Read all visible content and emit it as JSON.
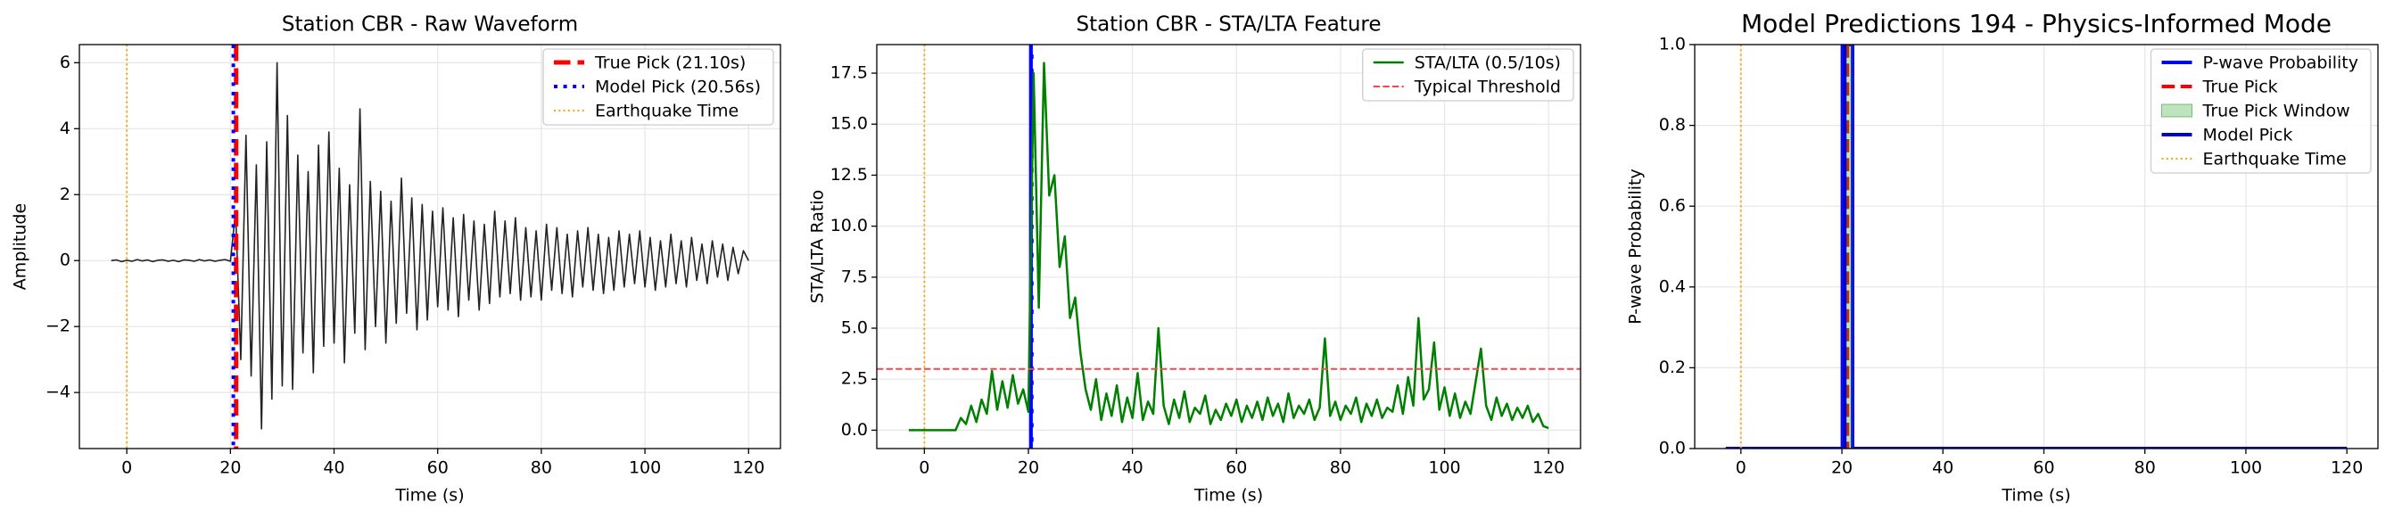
{
  "chart_data": [
    {
      "type": "line",
      "title": "Station CBR - Raw Waveform",
      "xlabel": "Time (s)",
      "ylabel": "Amplitude",
      "xlim": [
        -9.15,
        126.15
      ],
      "ylim": [
        -5.7,
        6.55
      ],
      "xticks": [
        0,
        20,
        40,
        60,
        80,
        100,
        120
      ],
      "yticks": [
        {
          "value": -4,
          "label": "−4"
        },
        {
          "value": -2,
          "label": "−2"
        },
        0,
        2,
        4,
        6
      ],
      "grid": true,
      "legend": "upper right",
      "marks": [
        {
          "kind": "line",
          "color": "#222222",
          "linestyle": "solid",
          "linewidth": 1.6,
          "x": [
            -3,
            -2,
            -1,
            0,
            1,
            2,
            3,
            4,
            5,
            6,
            7,
            8,
            9,
            10,
            11,
            12,
            13,
            14,
            15,
            16,
            17,
            18,
            19,
            20,
            21,
            22,
            23,
            24,
            25,
            26,
            27,
            28,
            29,
            30,
            31,
            32,
            33,
            34,
            35,
            36,
            37,
            38,
            39,
            40,
            41,
            42,
            43,
            44,
            45,
            46,
            47,
            48,
            49,
            50,
            51,
            52,
            53,
            54,
            55,
            56,
            57,
            58,
            59,
            60,
            61,
            62,
            63,
            64,
            65,
            66,
            67,
            68,
            69,
            70,
            71,
            72,
            73,
            74,
            75,
            76,
            77,
            78,
            79,
            80,
            81,
            82,
            83,
            84,
            85,
            86,
            87,
            88,
            89,
            90,
            91,
            92,
            93,
            94,
            95,
            96,
            97,
            98,
            99,
            100,
            101,
            102,
            103,
            104,
            105,
            106,
            107,
            108,
            109,
            110,
            111,
            112,
            113,
            114,
            115,
            116,
            117,
            118,
            119,
            120
          ],
          "values": [
            0,
            0.02,
            -0.03,
            0.01,
            -0.02,
            0.03,
            -0.01,
            0.02,
            -0.03,
            0.01,
            0.02,
            -0.02,
            0.01,
            -0.03,
            0.02,
            0.01,
            -0.02,
            0.03,
            -0.01,
            0.02,
            -0.02,
            0.01,
            0.03,
            -0.02,
            1.5,
            -3.0,
            3.8,
            -3.5,
            2.9,
            -5.1,
            3.6,
            -4.2,
            6.0,
            -3.8,
            4.4,
            -3.9,
            3.2,
            -2.8,
            2.7,
            -3.4,
            3.5,
            -2.6,
            3.9,
            -2.5,
            2.8,
            -3.1,
            2.3,
            -2.2,
            4.6,
            -2.7,
            2.4,
            -2.0,
            2.1,
            -2.5,
            1.8,
            -1.9,
            2.5,
            -1.6,
            1.9,
            -2.1,
            1.7,
            -1.8,
            1.5,
            -1.4,
            1.6,
            -1.5,
            1.3,
            -1.7,
            1.4,
            -1.2,
            1.2,
            -1.5,
            1.1,
            -1.3,
            1.5,
            -1.1,
            1.2,
            -1.0,
            1.3,
            -1.2,
            1.0,
            -1.1,
            0.9,
            -1.2,
            1.1,
            -0.9,
            1.0,
            -1.0,
            0.8,
            -1.1,
            0.9,
            -0.8,
            1.0,
            -0.9,
            0.8,
            -1.0,
            0.7,
            -0.9,
            0.9,
            -0.8,
            0.8,
            -0.7,
            0.9,
            -0.8,
            0.7,
            -0.9,
            0.6,
            -0.8,
            0.8,
            -0.7,
            0.6,
            -0.8,
            0.7,
            -0.6,
            0.5,
            -0.7,
            0.6,
            -0.5,
            0.5,
            -0.6,
            0.4,
            -0.4,
            0.3,
            0
          ]
        },
        {
          "kind": "vline",
          "name": "True Pick (21.10s)",
          "x": 21.1,
          "color": "#ff0000",
          "linestyle": "dashed",
          "linewidth": 5
        },
        {
          "kind": "vline",
          "name": "Model Pick (20.56s)",
          "x": 20.56,
          "color": "#0000ff",
          "linestyle": "dotted",
          "linewidth": 4
        },
        {
          "kind": "vline",
          "name": "Earthquake Time",
          "x": 0,
          "color": "#ffa500",
          "linestyle": "dotted",
          "linewidth": 2
        }
      ]
    },
    {
      "type": "line",
      "title": "Station CBR - STA/LTA Feature",
      "xlabel": "Time (s)",
      "ylabel": "STA/LTA Ratio",
      "xlim": [
        -9.15,
        126.15
      ],
      "ylim": [
        -0.9,
        18.9
      ],
      "xticks": [
        0,
        20,
        40,
        60,
        80,
        100,
        120
      ],
      "yticks": [
        {
          "value": 0,
          "label": "0.0"
        },
        2.5,
        {
          "value": 5,
          "label": "5.0"
        },
        7.5,
        {
          "value": 10,
          "label": "10.0"
        },
        12.5,
        {
          "value": 15,
          "label": "15.0"
        },
        17.5
      ],
      "grid": true,
      "legend": "upper right",
      "marks": [
        {
          "kind": "vline",
          "x": 0,
          "color": "#ffa500",
          "linestyle": "dotted",
          "linewidth": 2
        },
        {
          "kind": "vline",
          "x": 20.56,
          "color": "#0000ff",
          "linestyle": "solid",
          "linewidth": 5
        },
        {
          "kind": "vline",
          "x": 21.1,
          "color": "#ffffff",
          "linestyle": "dashed",
          "linewidth": 3
        },
        {
          "kind": "line",
          "name": "STA/LTA (0.5/10s)",
          "color": "#008000",
          "linestyle": "solid",
          "linewidth": 2.5,
          "x": [
            -3,
            -2,
            -1,
            0,
            1,
            2,
            3,
            4,
            5,
            6,
            7,
            8,
            9,
            10,
            11,
            12,
            13,
            14,
            15,
            16,
            17,
            18,
            19,
            20,
            21,
            22,
            23,
            24,
            25,
            26,
            27,
            28,
            29,
            30,
            31,
            32,
            33,
            34,
            35,
            36,
            37,
            38,
            39,
            40,
            41,
            42,
            43,
            44,
            45,
            46,
            47,
            48,
            49,
            50,
            51,
            52,
            53,
            54,
            55,
            56,
            57,
            58,
            59,
            60,
            61,
            62,
            63,
            64,
            65,
            66,
            67,
            68,
            69,
            70,
            71,
            72,
            73,
            74,
            75,
            76,
            77,
            78,
            79,
            80,
            81,
            82,
            83,
            84,
            85,
            86,
            87,
            88,
            89,
            90,
            91,
            92,
            93,
            94,
            95,
            96,
            97,
            98,
            99,
            100,
            101,
            102,
            103,
            104,
            105,
            106,
            107,
            108,
            109,
            110,
            111,
            112,
            113,
            114,
            115,
            116,
            117,
            118,
            119,
            120
          ],
          "values": [
            0,
            0,
            0,
            0,
            0,
            0,
            0,
            0,
            0,
            0,
            0.6,
            0.3,
            1.2,
            0.4,
            1.5,
            0.8,
            2.9,
            1.0,
            2.4,
            1.1,
            2.7,
            1.3,
            2.0,
            0.9,
            17.5,
            6.0,
            18.0,
            11.5,
            12.5,
            8.0,
            9.5,
            5.5,
            6.5,
            3.8,
            2.0,
            1.0,
            2.5,
            0.5,
            1.8,
            0.7,
            2.2,
            0.4,
            1.6,
            0.6,
            2.8,
            0.5,
            1.4,
            0.8,
            5.0,
            1.2,
            0.3,
            1.5,
            0.6,
            1.9,
            0.4,
            1.1,
            0.8,
            1.7,
            0.3,
            1.0,
            0.5,
            1.3,
            0.7,
            1.5,
            0.4,
            1.2,
            0.6,
            1.4,
            0.5,
            1.6,
            0.7,
            1.3,
            0.4,
            1.8,
            0.6,
            1.2,
            0.8,
            1.5,
            0.5,
            1.1,
            4.5,
            0.7,
            1.4,
            0.5,
            1.2,
            0.8,
            1.6,
            0.4,
            1.3,
            0.7,
            1.5,
            0.6,
            1.1,
            0.9,
            2.2,
            0.8,
            2.6,
            1.2,
            5.5,
            1.5,
            2.0,
            4.3,
            1.0,
            2.1,
            0.7,
            1.8,
            0.6,
            1.4,
            0.8,
            2.4,
            4.0,
            1.2,
            0.5,
            1.6,
            0.7,
            1.3,
            0.5,
            1.1,
            0.6,
            1.2,
            0.4,
            0.8,
            0.2,
            0.1
          ]
        },
        {
          "kind": "hline",
          "name": "Typical Threshold",
          "y": 3,
          "color": "#f04a4a",
          "linestyle": "dashed",
          "linewidth": 2
        }
      ]
    },
    {
      "type": "line",
      "title": "Model Predictions 194 - Physics-Informed Mode",
      "xlabel": "Time (s)",
      "ylabel": "P-wave Probability",
      "xlim": [
        -9.15,
        126.15
      ],
      "ylim": [
        0,
        1
      ],
      "xticks": [
        0,
        20,
        40,
        60,
        80,
        100,
        120
      ],
      "yticks": [
        {
          "value": 0,
          "label": "0.0"
        },
        0.2,
        0.4,
        0.6,
        0.8,
        {
          "value": 1,
          "label": "1.0"
        }
      ],
      "grid": true,
      "legend": "upper right",
      "marks": [
        {
          "kind": "line",
          "name": "P-wave Probability",
          "color": "#0000ff",
          "linestyle": "solid",
          "linewidth": 4,
          "x": [
            -3,
            20.1,
            20.1,
            22.1,
            22.1,
            120
          ],
          "values": [
            0,
            0,
            1,
            1,
            0,
            0
          ]
        },
        {
          "kind": "vline",
          "name": "True Pick",
          "x": 21.1,
          "color": "#ff0000",
          "linestyle": "dashed",
          "linewidth": 4
        },
        {
          "kind": "span",
          "name": "True Pick Window",
          "span": [
            20.1,
            22.1
          ],
          "color": "#2ca02c",
          "opacity": 0.3
        },
        {
          "kind": "vline",
          "name": "Model Pick",
          "x": 20.56,
          "color": "#0000cc",
          "linestyle": "solid",
          "linewidth": 4
        },
        {
          "kind": "vline",
          "name": "Earthquake Time",
          "x": 0,
          "color": "#ffa500",
          "linestyle": "dotted",
          "linewidth": 2
        }
      ]
    }
  ]
}
